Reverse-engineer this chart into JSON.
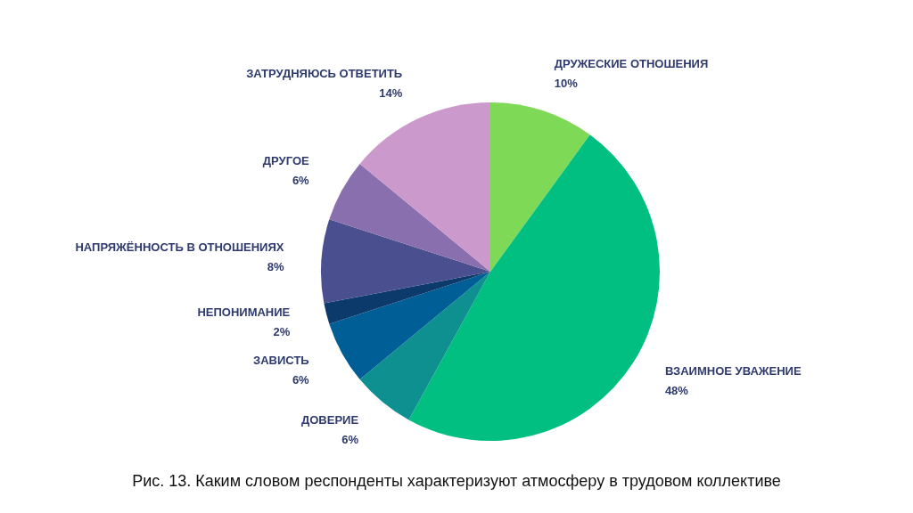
{
  "chart_data": {
    "type": "pie",
    "categories": [
      "ДРУЖЕСКИЕ ОТНОШЕНИЯ",
      "ВЗАИМНОЕ УВАЖЕНИЕ",
      "ДОВЕРИЕ",
      "ЗАВИСТЬ",
      "НЕПОНИМАНИЕ",
      "НАПРЯЖЁННОСТЬ В ОТНОШЕНИЯХ",
      "ДРУГОЕ",
      "ЗАТРУДНЯЮСЬ ОТВЕТИТЬ"
    ],
    "values": [
      10,
      48,
      6,
      6,
      2,
      8,
      6,
      14
    ],
    "value_labels": [
      "10%",
      "48%",
      "6%",
      "6%",
      "2%",
      "8%",
      "6%",
      "14%"
    ],
    "colors": [
      "#7ed957",
      "#00bf80",
      "#0e9090",
      "#005e96",
      "#0c3a6a",
      "#4a4f8f",
      "#8a6fae",
      "#cc99cc"
    ],
    "legend": false,
    "annotations": [
      "Рис. 13. Каким словом респонденты характеризуют атмосферу в трудовом коллективе"
    ]
  }
}
